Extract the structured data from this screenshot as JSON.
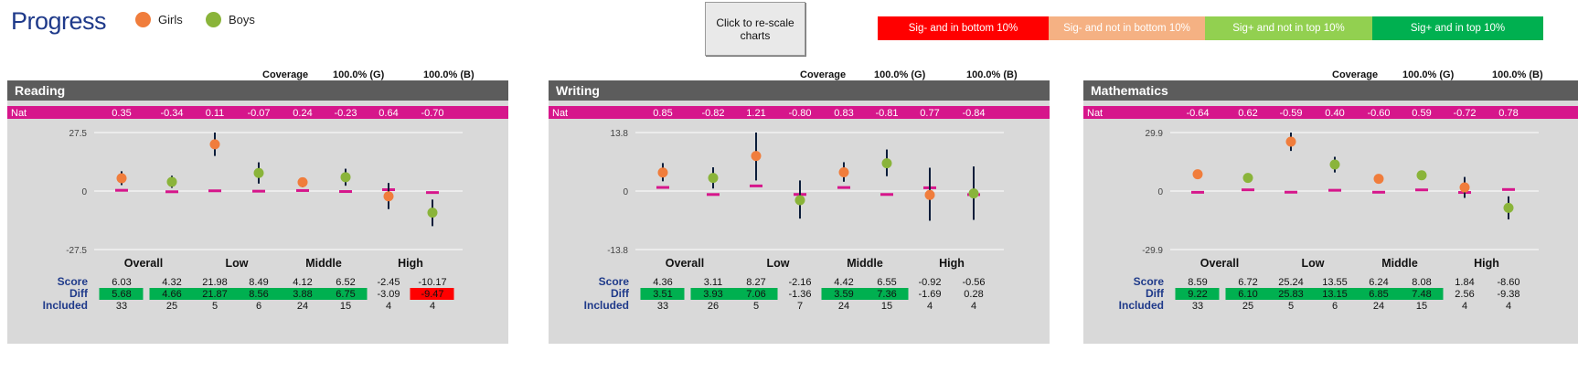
{
  "header": {
    "title": "Progress",
    "legend": [
      {
        "label": "Girls",
        "color": "#f07d3c"
      },
      {
        "label": "Boys",
        "color": "#8ab43a"
      }
    ],
    "rescale_label": "Click to re-scale charts",
    "key": [
      {
        "label": "Sig- and  in bottom 10%",
        "color": "#ff0000"
      },
      {
        "label": "Sig- and not in bottom 10%",
        "color": "#f5b183"
      },
      {
        "label": "Sig+ and not in top 10%",
        "color": "#92d050"
      },
      {
        "label": "Sig+ and in top 10%",
        "color": "#00b050"
      }
    ]
  },
  "colors": {
    "girls": "#f07d3c",
    "boys": "#8ab43a",
    "nat": "#d6168b",
    "bar": "#0b1d3a",
    "green": "#00b050",
    "red": "#ff0000",
    "label_blue": "#1f3a8a"
  },
  "labels": {
    "nat": "Nat",
    "score": "Score",
    "diff": "Diff",
    "included": "Included",
    "coverage": "Coverage"
  },
  "chart_data": [
    {
      "type": "scatter",
      "title": "Reading",
      "coverage": {
        "girls": "100.0%  (G)",
        "boys": "100.0%  (B)"
      },
      "groups": [
        "Overall",
        "Low",
        "Middle",
        "High"
      ],
      "series_order": [
        "Girls",
        "Boys"
      ],
      "yticks": [
        "27.5",
        "0",
        "-27.5"
      ],
      "ylim": [
        -27.5,
        27.5
      ],
      "nat": [
        "0.35",
        "-0.34",
        "0.11",
        "-0.07",
        "0.24",
        "-0.23",
        "0.64",
        "-0.70"
      ],
      "score": [
        "6.03",
        "4.32",
        "21.98",
        "8.49",
        "4.12",
        "6.52",
        "-2.45",
        "-10.17"
      ],
      "diff": [
        "5.68",
        "4.66",
        "21.87",
        "8.56",
        "3.88",
        "6.75",
        "-3.09",
        "-9.47"
      ],
      "diff_sig": [
        "green",
        "green",
        "green",
        "green",
        "green",
        "green",
        "",
        "red"
      ],
      "included": [
        "33",
        "25",
        "5",
        "6",
        "24",
        "15",
        "4",
        "4"
      ],
      "ci": [
        [
          2.8,
          9.3
        ],
        [
          1.5,
          7.2
        ],
        [
          16.5,
          27.5
        ],
        [
          3.5,
          13.5
        ],
        [
          1.8,
          6.4
        ],
        [
          2.5,
          10.5
        ],
        [
          -8.5,
          3.8
        ],
        [
          -16.5,
          -4.0
        ]
      ]
    },
    {
      "type": "scatter",
      "title": "Writing",
      "coverage": {
        "girls": "100.0%  (G)",
        "boys": "100.0%  (B)"
      },
      "groups": [
        "Overall",
        "Low",
        "Middle",
        "High"
      ],
      "series_order": [
        "Girls",
        "Boys"
      ],
      "yticks": [
        "13.8",
        "0",
        "-13.8"
      ],
      "ylim": [
        -13.8,
        13.8
      ],
      "nat": [
        "0.85",
        "-0.82",
        "1.21",
        "-0.80",
        "0.83",
        "-0.81",
        "0.77",
        "-0.84"
      ],
      "score": [
        "4.36",
        "3.11",
        "8.27",
        "-2.16",
        "4.42",
        "6.55",
        "-0.92",
        "-0.56"
      ],
      "diff": [
        "3.51",
        "3.93",
        "7.06",
        "-1.36",
        "3.59",
        "7.36",
        "-1.69",
        "0.28"
      ],
      "diff_sig": [
        "green",
        "green",
        "green",
        "",
        "green",
        "green",
        "",
        ""
      ],
      "included": [
        "33",
        "26",
        "5",
        "7",
        "24",
        "15",
        "4",
        "4"
      ],
      "ci": [
        [
          2.3,
          6.6
        ],
        [
          0.6,
          5.6
        ],
        [
          2.5,
          13.8
        ],
        [
          -6.5,
          2.5
        ],
        [
          2.2,
          6.8
        ],
        [
          3.5,
          9.8
        ],
        [
          -7.0,
          5.5
        ],
        [
          -6.8,
          5.8
        ]
      ]
    },
    {
      "type": "scatter",
      "title": "Mathematics",
      "coverage": {
        "girls": "100.0%  (G)",
        "boys": "100.0%  (B)"
      },
      "groups": [
        "Overall",
        "Low",
        "Middle",
        "High"
      ],
      "series_order": [
        "Girls",
        "Boys"
      ],
      "yticks": [
        "29.9",
        "0",
        "-29.9"
      ],
      "ylim": [
        -29.9,
        29.9
      ],
      "nat": [
        "-0.64",
        "0.62",
        "-0.59",
        "0.40",
        "-0.60",
        "0.59",
        "-0.72",
        "0.78"
      ],
      "score": [
        "8.59",
        "6.72",
        "25.24",
        "13.55",
        "6.24",
        "8.08",
        "1.84",
        "-8.60"
      ],
      "diff": [
        "9.22",
        "6.10",
        "25.83",
        "13.15",
        "6.85",
        "7.48",
        "2.56",
        "-9.38"
      ],
      "diff_sig": [
        "green",
        "green",
        "green",
        "green",
        "green",
        "green",
        "",
        ""
      ],
      "included": [
        "33",
        "25",
        "5",
        "6",
        "24",
        "15",
        "4",
        "4"
      ],
      "ci": [
        [
          7.2,
          10.0
        ],
        [
          5.0,
          8.4
        ],
        [
          20.5,
          29.9
        ],
        [
          9.5,
          17.5
        ],
        [
          4.8,
          7.6
        ],
        [
          6.0,
          10.0
        ],
        [
          -3.5,
          7.2
        ],
        [
          -14.5,
          -2.7
        ]
      ]
    }
  ]
}
